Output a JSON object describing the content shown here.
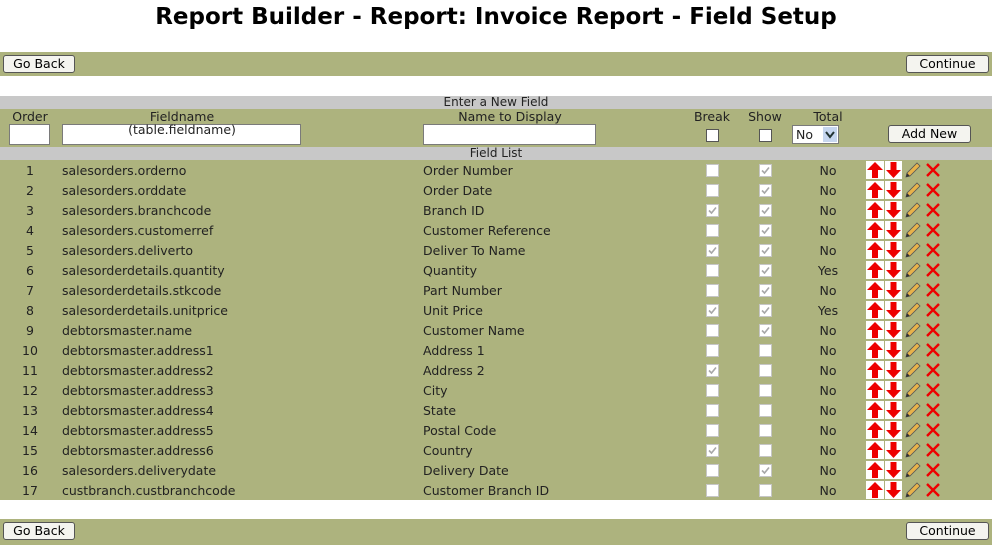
{
  "header": {
    "title": "Report Builder - Report: Invoice Report - Field Setup"
  },
  "buttons": {
    "back": "Go Back",
    "continue": "Continue"
  },
  "new_field": {
    "heading": "Enter a New Field",
    "columns": [
      "Order",
      "Fieldname (table.fieldname)",
      "Name to Display",
      "Break",
      "Show",
      "Total"
    ],
    "total_default": "No",
    "add_button": "Add New"
  },
  "field_list": {
    "heading": "Field List",
    "rows": [
      {
        "order": 1,
        "fieldname": "salesorders.orderno",
        "display": "Order Number",
        "break": false,
        "show": true,
        "total": "No"
      },
      {
        "order": 2,
        "fieldname": "salesorders.orddate",
        "display": "Order Date",
        "break": false,
        "show": true,
        "total": "No"
      },
      {
        "order": 3,
        "fieldname": "salesorders.branchcode",
        "display": "Branch ID",
        "break": true,
        "show": true,
        "total": "No"
      },
      {
        "order": 4,
        "fieldname": "salesorders.customerref",
        "display": "Customer Reference",
        "break": false,
        "show": true,
        "total": "No"
      },
      {
        "order": 5,
        "fieldname": "salesorders.deliverto",
        "display": "Deliver To Name",
        "break": true,
        "show": true,
        "total": "No"
      },
      {
        "order": 6,
        "fieldname": "salesorderdetails.quantity",
        "display": "Quantity",
        "break": false,
        "show": true,
        "total": "Yes"
      },
      {
        "order": 7,
        "fieldname": "salesorderdetails.stkcode",
        "display": "Part Number",
        "break": false,
        "show": true,
        "total": "No"
      },
      {
        "order": 8,
        "fieldname": "salesorderdetails.unitprice",
        "display": "Unit Price",
        "break": true,
        "show": true,
        "total": "Yes"
      },
      {
        "order": 9,
        "fieldname": "debtorsmaster.name",
        "display": "Customer Name",
        "break": false,
        "show": true,
        "total": "No"
      },
      {
        "order": 10,
        "fieldname": "debtorsmaster.address1",
        "display": "Address 1",
        "break": false,
        "show": false,
        "total": "No"
      },
      {
        "order": 11,
        "fieldname": "debtorsmaster.address2",
        "display": "Address 2",
        "break": true,
        "show": false,
        "total": "No"
      },
      {
        "order": 12,
        "fieldname": "debtorsmaster.address3",
        "display": "City",
        "break": false,
        "show": false,
        "total": "No"
      },
      {
        "order": 13,
        "fieldname": "debtorsmaster.address4",
        "display": "State",
        "break": false,
        "show": false,
        "total": "No"
      },
      {
        "order": 14,
        "fieldname": "debtorsmaster.address5",
        "display": "Postal Code",
        "break": false,
        "show": false,
        "total": "No"
      },
      {
        "order": 15,
        "fieldname": "debtorsmaster.address6",
        "display": "Country",
        "break": true,
        "show": false,
        "total": "No"
      },
      {
        "order": 16,
        "fieldname": "salesorders.deliverydate",
        "display": "Delivery Date",
        "break": false,
        "show": true,
        "total": "No"
      },
      {
        "order": 17,
        "fieldname": "custbranch.custbranchcode",
        "display": "Customer Branch ID",
        "break": false,
        "show": false,
        "total": "No"
      }
    ]
  }
}
